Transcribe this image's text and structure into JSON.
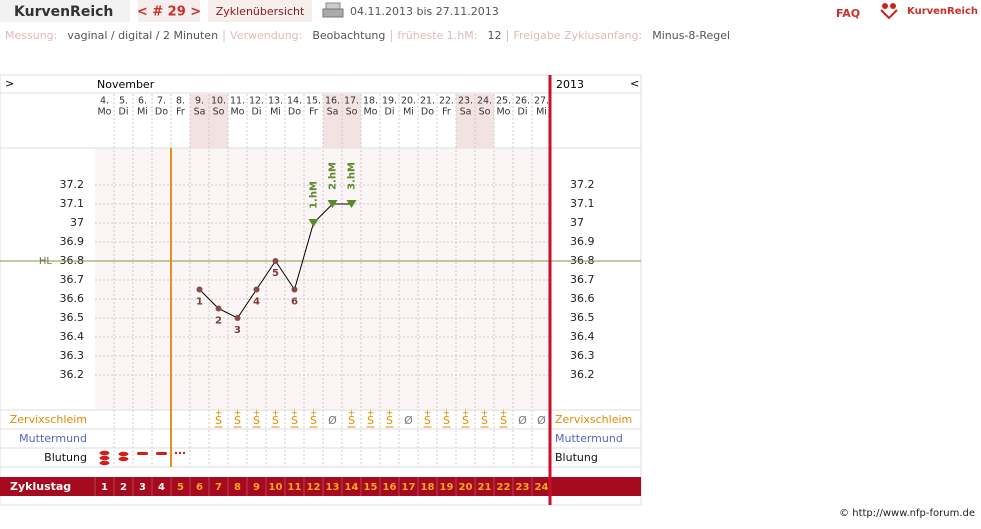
{
  "header": {
    "logo": "KurvenReich",
    "cycle_nav": "< # 29 >",
    "overview": "Zyklenübersicht",
    "date_range": "04.11.2013 bis 27.11.2013",
    "faq": "FAQ",
    "brand": "KurvenReich"
  },
  "info": [
    {
      "label": "Messung:",
      "value": "vaginal / digital / 2 Minuten"
    },
    {
      "label": "Verwendung:",
      "value": "Beobachtung"
    },
    {
      "label": "früheste 1.hM:",
      "value": "12"
    },
    {
      "label": "Freigabe Zyklusanfang:",
      "value": "Minus-8-Regel"
    }
  ],
  "chart_data": {
    "type": "line",
    "nav_left": ">",
    "month": "November",
    "year": "2013",
    "nav_right": "<",
    "days": [
      "4.",
      "5.",
      "6.",
      "7.",
      "8.",
      "9.",
      "10.",
      "11.",
      "12.",
      "13.",
      "14.",
      "15.",
      "16.",
      "17.",
      "18.",
      "19.",
      "20.",
      "21.",
      "22.",
      "23.",
      "24.",
      "25.",
      "26.",
      "27."
    ],
    "weekdays": [
      "Mo",
      "Di",
      "Mi",
      "Do",
      "Fr",
      "Sa",
      "So",
      "Mo",
      "Di",
      "Mi",
      "Do",
      "Fr",
      "Sa",
      "So",
      "Mo",
      "Di",
      "Mi",
      "Do",
      "Fr",
      "Sa",
      "So",
      "Mo",
      "Di",
      "Mi"
    ],
    "shaded_columns": [
      5,
      6,
      12,
      13,
      19,
      20
    ],
    "values": [
      null,
      null,
      null,
      null,
      null,
      36.65,
      36.55,
      36.5,
      36.65,
      36.8,
      36.65,
      37.0,
      37.1,
      37.1,
      null,
      null,
      null,
      null,
      null,
      null,
      null,
      null,
      null,
      null
    ],
    "point_labels": [
      null,
      null,
      null,
      null,
      null,
      "1",
      "2",
      "3",
      "4",
      "5",
      "6",
      null,
      null,
      null,
      null,
      null,
      null,
      null,
      null,
      null,
      null,
      null,
      null,
      null
    ],
    "hm_labels": [
      null,
      null,
      null,
      null,
      null,
      null,
      null,
      null,
      null,
      null,
      null,
      "1.hM",
      "2.hM",
      "3.hM",
      null,
      null,
      null,
      null,
      null,
      null,
      null,
      null,
      null,
      null
    ],
    "ylim": [
      36.0,
      37.4
    ],
    "yticks": [
      36.2,
      36.3,
      36.4,
      36.5,
      36.6,
      36.7,
      36.8,
      36.9,
      37,
      37.1,
      37.2
    ],
    "grid": true,
    "hl": {
      "label": "HL",
      "value": 36.8,
      "color": "#7a9a4a"
    },
    "divider_index": 4,
    "zervix": {
      "label": "Zervixschleim",
      "values": [
        null,
        null,
        null,
        null,
        null,
        null,
        {
          "sup": "+",
          "sym": "S"
        },
        {
          "sup": "+",
          "sym": "S"
        },
        {
          "sup": "+",
          "sym": "S"
        },
        {
          "sup": "+",
          "sym": "S"
        },
        {
          "sup": "+",
          "sym": "S"
        },
        {
          "sup": "+",
          "sym": "S"
        },
        "Ø",
        {
          "sup": "+",
          "sym": "S"
        },
        {
          "sup": "+",
          "sym": "S"
        },
        {
          "sup": "+",
          "sym": "S"
        },
        "Ø",
        {
          "sup": "+",
          "sym": "S"
        },
        {
          "sup": "+",
          "sym": "S"
        },
        {
          "sup": "+",
          "sym": "S"
        },
        {
          "sup": "+",
          "sym": "S"
        },
        {
          "sup": "+",
          "sym": "S"
        },
        "Ø",
        "Ø"
      ]
    },
    "muttermund": {
      "label": "Muttermund"
    },
    "blutung": {
      "label": "Blutung"
    },
    "cycle_label": "Zyklustag",
    "cycle_days": [
      1,
      2,
      3,
      4,
      5,
      6,
      7,
      8,
      9,
      10,
      11,
      12,
      13,
      14,
      15,
      16,
      17,
      18,
      19,
      20,
      21,
      22,
      23,
      24
    ]
  },
  "footer": "© http://www.nfp-forum.de"
}
